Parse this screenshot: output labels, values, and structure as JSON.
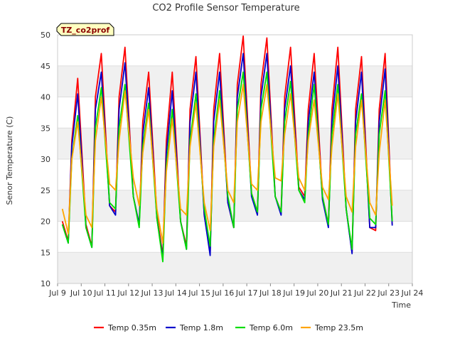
{
  "chart_data": {
    "type": "line",
    "title": "CO2 Profile Sensor Temperature",
    "xlabel": "Time",
    "ylabel": "Senor Temperature (C)",
    "badge": "TZ_co2prof",
    "xlim": [
      9,
      24
    ],
    "ylim": [
      10,
      50
    ],
    "x_ticks": [
      9,
      10,
      11,
      12,
      13,
      14,
      15,
      16,
      17,
      18,
      19,
      20,
      21,
      22,
      23,
      24
    ],
    "x_tick_labels": [
      "Jul 9",
      "Jul 10",
      "Jul 11",
      "Jul 12",
      "Jul 13",
      "Jul 14",
      "Jul 15",
      "Jul 16",
      "Jul 17",
      "Jul 18",
      "Jul 19",
      "Jul 20",
      "Jul 21",
      "Jul 22",
      "Jul 23",
      "Jul 24"
    ],
    "y_ticks": [
      10,
      15,
      20,
      25,
      30,
      35,
      40,
      45,
      50
    ],
    "grid": true,
    "legend_position": "bottom",
    "x_units": "day of July 2023 (fractional)",
    "series": [
      {
        "name": "Temp 0.35m",
        "color": "#ff0000",
        "x": [
          9.2,
          9.45,
          9.6,
          9.85,
          10.2,
          10.45,
          10.6,
          10.85,
          11.2,
          11.45,
          11.6,
          11.85,
          12.2,
          12.45,
          12.6,
          12.85,
          13.2,
          13.45,
          13.6,
          13.85,
          14.2,
          14.45,
          14.6,
          14.85,
          15.2,
          15.45,
          15.6,
          15.85,
          16.2,
          16.45,
          16.6,
          16.85,
          17.2,
          17.45,
          17.6,
          17.85,
          18.2,
          18.45,
          18.6,
          18.85,
          19.2,
          19.45,
          19.6,
          19.85,
          20.2,
          20.45,
          20.6,
          20.85,
          21.2,
          21.45,
          21.6,
          21.85,
          22.2,
          22.45,
          22.6,
          22.85,
          23.15
        ],
        "y": [
          20.0,
          16.8,
          33.0,
          43.0,
          19.5,
          16.0,
          40.0,
          47.0,
          22.5,
          21.5,
          40.0,
          48.0,
          24.0,
          19.5,
          36.0,
          44.0,
          21.0,
          14.5,
          33.0,
          44.0,
          20.0,
          16.0,
          38.0,
          46.5,
          21.0,
          15.0,
          38.0,
          47.0,
          23.0,
          19.0,
          42.0,
          49.8,
          24.5,
          21.5,
          42.0,
          49.5,
          24.0,
          21.5,
          40.0,
          48.0,
          25.5,
          24.0,
          38.0,
          47.0,
          24.0,
          19.5,
          38.0,
          48.0,
          22.0,
          15.0,
          38.0,
          46.5,
          19.0,
          18.5,
          38.0,
          47.0,
          19.5
        ]
      },
      {
        "name": "Temp 1.8m",
        "color": "#0000cc",
        "x": [
          9.2,
          9.45,
          9.6,
          9.85,
          10.2,
          10.45,
          10.6,
          10.85,
          11.2,
          11.45,
          11.6,
          11.85,
          12.2,
          12.45,
          12.6,
          12.85,
          13.2,
          13.45,
          13.6,
          13.85,
          14.2,
          14.45,
          14.6,
          14.85,
          15.2,
          15.45,
          15.6,
          15.85,
          16.2,
          16.45,
          16.6,
          16.85,
          17.2,
          17.45,
          17.6,
          17.85,
          18.2,
          18.45,
          18.6,
          18.85,
          19.2,
          19.45,
          19.6,
          19.85,
          20.2,
          20.45,
          20.6,
          20.85,
          21.2,
          21.45,
          21.6,
          21.85,
          22.2,
          22.45,
          22.6,
          22.85,
          23.15
        ],
        "y": [
          19.5,
          16.5,
          32.0,
          40.5,
          19.0,
          15.8,
          38.0,
          44.0,
          22.5,
          21.0,
          38.0,
          45.5,
          24.0,
          19.5,
          34.0,
          41.5,
          20.5,
          14.0,
          31.0,
          41.0,
          20.0,
          15.5,
          36.0,
          44.0,
          21.0,
          14.5,
          36.0,
          44.0,
          23.0,
          19.0,
          40.0,
          47.0,
          24.0,
          21.0,
          40.0,
          47.0,
          24.0,
          21.0,
          38.0,
          45.0,
          25.0,
          23.5,
          36.0,
          44.0,
          23.5,
          19.0,
          36.0,
          45.0,
          22.0,
          14.8,
          36.0,
          44.0,
          19.0,
          19.0,
          36.0,
          44.5,
          19.3
        ]
      },
      {
        "name": "Temp 6.0m",
        "color": "#00dd00",
        "x": [
          9.2,
          9.45,
          9.6,
          9.85,
          10.2,
          10.45,
          10.6,
          10.85,
          11.2,
          11.45,
          11.6,
          11.85,
          12.2,
          12.45,
          12.6,
          12.85,
          13.2,
          13.45,
          13.6,
          13.85,
          14.2,
          14.45,
          14.6,
          14.85,
          15.2,
          15.45,
          15.6,
          15.85,
          16.2,
          16.45,
          16.6,
          16.85,
          17.2,
          17.45,
          17.6,
          17.85,
          18.2,
          18.45,
          18.6,
          18.85,
          19.2,
          19.45,
          19.6,
          19.85,
          20.2,
          20.45,
          20.6,
          20.85,
          21.2,
          21.45,
          21.6,
          21.85,
          22.2,
          22.45,
          22.6,
          22.85,
          23.15
        ],
        "y": [
          19.5,
          16.5,
          30.0,
          37.0,
          19.0,
          15.8,
          35.0,
          41.5,
          23.0,
          22.0,
          35.0,
          42.0,
          24.0,
          19.0,
          32.0,
          39.0,
          20.5,
          13.5,
          29.0,
          38.0,
          20.0,
          15.5,
          33.0,
          40.5,
          22.0,
          16.0,
          33.0,
          41.0,
          24.0,
          19.0,
          38.0,
          44.0,
          24.5,
          21.5,
          38.0,
          44.0,
          24.0,
          21.5,
          36.0,
          42.5,
          25.0,
          23.0,
          34.0,
          42.0,
          24.0,
          19.5,
          34.0,
          42.0,
          22.0,
          15.5,
          34.0,
          40.5,
          20.5,
          19.5,
          34.0,
          41.0,
          20.0
        ]
      },
      {
        "name": "Temp 23.5m",
        "color": "#ffa500",
        "x": [
          9.2,
          9.45,
          9.6,
          9.85,
          10.2,
          10.45,
          10.6,
          10.85,
          11.2,
          11.45,
          11.6,
          11.85,
          12.2,
          12.45,
          12.6,
          12.85,
          13.2,
          13.45,
          13.6,
          13.85,
          14.2,
          14.45,
          14.6,
          14.85,
          15.2,
          15.45,
          15.6,
          15.85,
          16.2,
          16.45,
          16.6,
          16.85,
          17.2,
          17.45,
          17.6,
          17.85,
          18.2,
          18.45,
          18.6,
          18.85,
          19.2,
          19.45,
          19.6,
          19.85,
          20.2,
          20.45,
          20.6,
          20.85,
          21.2,
          21.45,
          21.6,
          21.85,
          22.2,
          22.45,
          22.6,
          22.85,
          23.15
        ],
        "y": [
          22.0,
          18.0,
          30.0,
          36.0,
          21.0,
          19.0,
          33.0,
          40.0,
          26.0,
          25.0,
          33.0,
          41.0,
          27.0,
          22.5,
          31.0,
          38.0,
          22.0,
          16.5,
          28.0,
          36.5,
          22.0,
          21.0,
          32.0,
          39.0,
          23.0,
          18.5,
          32.0,
          39.5,
          25.0,
          23.0,
          36.0,
          42.0,
          26.0,
          25.0,
          36.0,
          42.0,
          27.0,
          26.5,
          34.0,
          40.5,
          27.0,
          25.0,
          33.0,
          39.5,
          25.5,
          23.5,
          32.0,
          40.5,
          24.0,
          21.5,
          32.0,
          39.5,
          23.0,
          21.0,
          31.0,
          39.5,
          22.5
        ]
      }
    ]
  }
}
